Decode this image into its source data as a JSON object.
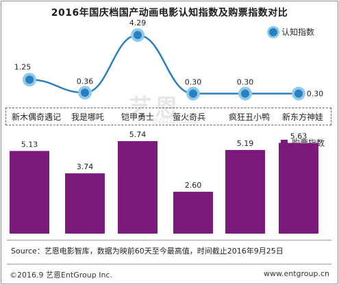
{
  "chart_data": {
    "type": "bar",
    "title": "2016年国庆档国产动画电影认知指数及购票指数对比",
    "categories": [
      "新木偶奇遇记",
      "我是哪吒",
      "铠甲勇士",
      "萤火奇兵",
      "疯狂丑小鸭",
      "新东方神娃"
    ],
    "series": [
      {
        "name": "认知指数",
        "type": "line",
        "values": [
          1.25,
          0.36,
          4.29,
          0.3,
          0.3,
          0.3
        ]
      },
      {
        "name": "购票指数",
        "type": "bar",
        "values": [
          5.13,
          3.74,
          5.74,
          2.6,
          5.19,
          5.63
        ]
      }
    ],
    "colors": {
      "line": "#2a7fc0",
      "line_halo": "#8ecbeb",
      "bar": "#7b1a7b"
    },
    "legend": {
      "line_label": "认知指数",
      "bar_label": "购票指数"
    }
  },
  "footer": {
    "source": "Source：艺恩电影智库，数据为映前60天至今最高值，时间截止2016年9月25日",
    "copyright": "©2016.9  艺恩EntGroup Inc.",
    "website": "www.entgroup.cn"
  },
  "watermark": {
    "logo_text": "艺恩",
    "sub_text": "entgroup"
  }
}
